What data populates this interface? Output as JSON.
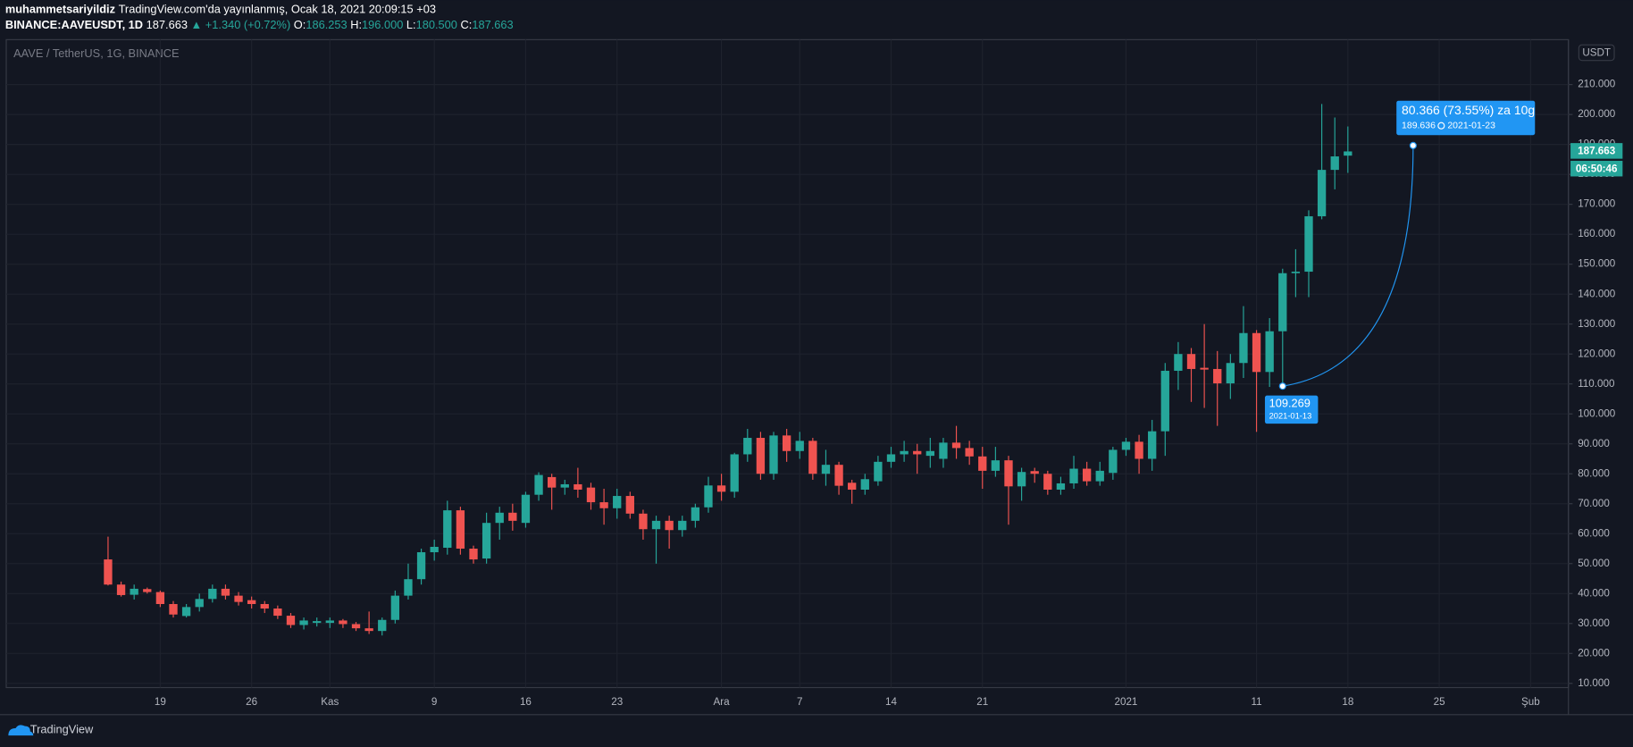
{
  "header": {
    "author": "muhammetsariyildiz",
    "published": "TradingView.com'da yayınlanmış, Ocak 18, 2021 20:09:15 +03",
    "symbol": "BINANCE:AAVEUSDT, 1D",
    "price": "187.663",
    "change": "▲ +1.340 (+0.72%)",
    "ohlc": [
      {
        "key": "O:",
        "value": "186.253"
      },
      {
        "key": "H:",
        "value": "196.000"
      },
      {
        "key": "L:",
        "value": "180.500"
      },
      {
        "key": "C:",
        "value": "187.663"
      }
    ]
  },
  "chart_data": {
    "type": "candlestick",
    "title": "AAVE / TetherUS, 1G, BINANCE",
    "currency": "USDT",
    "countdown": "06:50:46",
    "up_color": "#26a69a",
    "down_color": "#ef5350",
    "grid": true,
    "open": [
      51.4,
      43,
      39.6,
      41.5,
      40.5,
      36.5,
      32.5,
      35.5,
      38.2,
      41.6,
      39.3,
      37.8,
      36.5,
      35,
      32.6,
      29.5,
      30.2,
      30.2,
      31,
      29.8,
      28.4,
      27.5,
      31.2,
      39.3,
      44.8,
      53.8,
      55.3,
      67.8,
      55,
      51.7,
      63.6,
      67,
      63.6,
      73,
      78.9,
      75.4,
      76.5,
      75.4,
      70.5,
      68.5,
      72.6,
      66.7,
      61.5,
      64.3,
      61.2,
      64.3,
      68.8,
      76.1,
      74,
      86.5,
      92,
      80,
      92.8,
      87.6,
      91,
      80,
      83,
      77,
      74.7,
      77.5,
      84,
      86.5,
      87.6,
      86,
      85,
      90.4,
      88.6,
      85.8,
      81,
      84.5,
      75.8,
      80.9,
      80,
      74.7,
      76.8,
      81.7,
      77.5,
      80.3,
      88,
      90.7,
      85,
      94.2,
      114.4,
      120,
      115.4,
      115,
      110.2,
      117,
      127,
      114,
      127.6,
      147,
      147.5,
      166,
      181.5,
      186.253
    ],
    "high": [
      59,
      44,
      43,
      42,
      41,
      37.5,
      36.5,
      40,
      43,
      43,
      40.5,
      39,
      37.5,
      36,
      33.5,
      32,
      32,
      32,
      31.5,
      30.5,
      34,
      32,
      41,
      50,
      55,
      58,
      71,
      69,
      56,
      67,
      69,
      70,
      74,
      80.5,
      80,
      78,
      82,
      77,
      75,
      75,
      74,
      68,
      66,
      66,
      66,
      70,
      79,
      80,
      87,
      95,
      94,
      94,
      95,
      94,
      92,
      88,
      84,
      78,
      80,
      86,
      89,
      91,
      90,
      92,
      92,
      96,
      91,
      89,
      89,
      86,
      82,
      82,
      81,
      79,
      86,
      84,
      84,
      89,
      92,
      93,
      98,
      117,
      124,
      122,
      130,
      121,
      120,
      136,
      128,
      132,
      148.5,
      155,
      168,
      203.5,
      199,
      196
    ],
    "low": [
      42.7,
      39,
      38,
      40,
      35.5,
      32,
      32,
      34,
      37,
      38,
      36,
      35,
      33.5,
      31.5,
      28.5,
      28,
      29,
      28.5,
      28.5,
      27.5,
      26.5,
      26,
      30,
      38,
      43,
      51,
      53,
      53,
      50,
      50,
      58,
      61,
      62,
      71,
      68,
      73,
      72,
      68,
      63,
      65,
      65,
      58,
      50,
      55,
      59,
      62,
      67,
      71,
      72,
      84,
      78,
      78,
      84,
      85,
      78,
      76,
      73,
      70,
      73,
      76,
      82,
      84,
      80,
      82,
      82,
      85,
      83,
      75,
      79,
      63,
      71,
      77,
      73,
      73,
      75,
      76,
      76,
      78,
      86,
      80,
      81,
      86,
      108,
      104,
      102,
      96,
      105,
      112,
      94,
      109,
      109.269,
      139,
      139,
      165,
      175,
      180.5
    ],
    "close": [
      43,
      39.5,
      41.6,
      40.5,
      36.5,
      33,
      35.5,
      38.2,
      41.6,
      39.3,
      37.2,
      36.5,
      35,
      32.6,
      29.5,
      31,
      30.8,
      31,
      29.8,
      28.4,
      27.5,
      31.2,
      39.3,
      44.8,
      53.8,
      55.6,
      67.8,
      55,
      51.4,
      63.6,
      67,
      64.3,
      73,
      79.6,
      75.4,
      76.5,
      74.7,
      70.5,
      68.5,
      72.6,
      66.7,
      61.5,
      64.3,
      61.2,
      64.3,
      68.8,
      76.1,
      74,
      86.5,
      92,
      80,
      92.8,
      87.6,
      91,
      80,
      83,
      76,
      74.7,
      78.2,
      84,
      86.5,
      87.6,
      86.5,
      87.6,
      90.4,
      88.6,
      85.8,
      81,
      84.5,
      75.8,
      80.6,
      80,
      74.7,
      76.8,
      81.7,
      77.5,
      81,
      88,
      90.7,
      85,
      94.2,
      114.4,
      120,
      115,
      114.8,
      110.2,
      117,
      127,
      114,
      127.6,
      147,
      147.5,
      166,
      181.5,
      186,
      187.663
    ],
    "xlim": [
      -7.8,
      111.9
    ],
    "xticks": [
      {
        "value": 4,
        "label": "19"
      },
      {
        "value": 11,
        "label": "26"
      },
      {
        "value": 17,
        "label": "Kas"
      },
      {
        "value": 25,
        "label": "9"
      },
      {
        "value": 32,
        "label": "16"
      },
      {
        "value": 39,
        "label": "23"
      },
      {
        "value": 47,
        "label": "Ara"
      },
      {
        "value": 53,
        "label": "7"
      },
      {
        "value": 60,
        "label": "14"
      },
      {
        "value": 67,
        "label": "21"
      },
      {
        "value": 78,
        "label": "2021"
      },
      {
        "value": 88,
        "label": "11"
      },
      {
        "value": 95,
        "label": "18"
      },
      {
        "value": 102,
        "label": "25"
      },
      {
        "value": 109,
        "label": "Şub"
      }
    ],
    "ylim": [
      8.6,
      225
    ],
    "yticks": [
      {
        "value": 10,
        "label": "10.000"
      },
      {
        "value": 20,
        "label": "20.000"
      },
      {
        "value": 30,
        "label": "30.000"
      },
      {
        "value": 40,
        "label": "40.000"
      },
      {
        "value": 50,
        "label": "50.000"
      },
      {
        "value": 60,
        "label": "60.000"
      },
      {
        "value": 70,
        "label": "70.000"
      },
      {
        "value": 80,
        "label": "80.000"
      },
      {
        "value": 90,
        "label": "90.000"
      },
      {
        "value": 100,
        "label": "100.000"
      },
      {
        "value": 110,
        "label": "110.000"
      },
      {
        "value": 120,
        "label": "120.000"
      },
      {
        "value": 130,
        "label": "130.000"
      },
      {
        "value": 140,
        "label": "140.000"
      },
      {
        "value": 150,
        "label": "150.000"
      },
      {
        "value": 160,
        "label": "160.000"
      },
      {
        "value": 170,
        "label": "170.000"
      },
      {
        "value": 180,
        "label": "180.000"
      },
      {
        "value": 190,
        "label": "190.000"
      },
      {
        "value": 200,
        "label": "200.000"
      },
      {
        "value": 210,
        "label": "210.000"
      }
    ],
    "projection": {
      "start": {
        "x": 90,
        "y": 109.269,
        "date": "2021-01-13"
      },
      "end": {
        "x": 100,
        "y": 189.636,
        "date": "2021-01-23",
        "change": "80.366 (73.55%) za 10g"
      }
    }
  },
  "footer": {
    "brand": "TradingView"
  }
}
